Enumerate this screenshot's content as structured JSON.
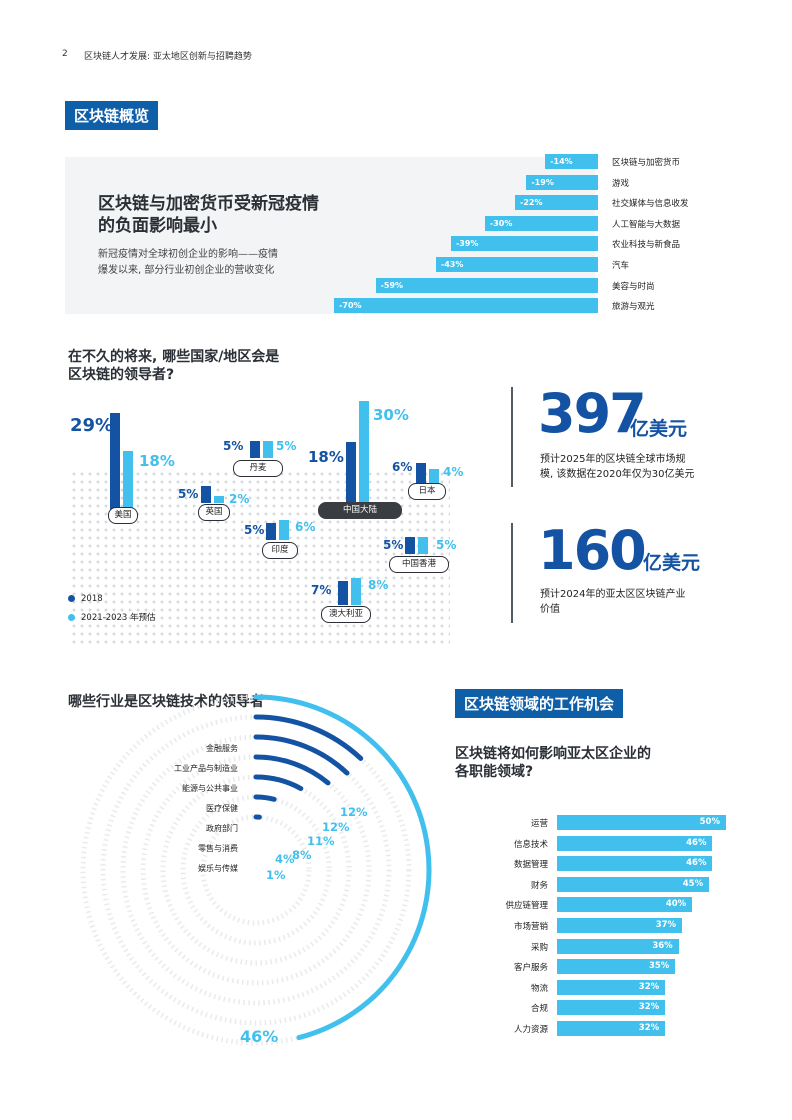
{
  "header": {
    "page_number": "2",
    "doc_title": "区块链人才发展: 亚太地区创新与招聘趋势"
  },
  "overview": {
    "tag": "区块链概览",
    "title_line1": "区块链与加密货币受新冠疫情",
    "title_line2": "的负面影响最小",
    "desc_line1": "新冠疫情对全球初创企业的影响——疫情",
    "desc_line2": "爆发以来, 部分行业初创企业的营收变化",
    "chart_data": {
      "type": "bar",
      "categories": [
        "区块链与加密货币",
        "游戏",
        "社交媒体与信息收发",
        "人工智能与大数据",
        "农业科技与新食品",
        "汽车",
        "美容与时尚",
        "旅游与观光"
      ],
      "values": [
        -14,
        -19,
        -22,
        -30,
        -39,
        -43,
        -59,
        -70
      ],
      "value_labels": [
        "-14%",
        "-19%",
        "-22%",
        "-30%",
        "-39%",
        "-43%",
        "-59%",
        "-70%"
      ]
    }
  },
  "leaders": {
    "title_line1": "在不久的将来, 哪些国家/地区会是",
    "title_line2": "区块链的领导者?",
    "legend": {
      "series_2018": "2018",
      "series_forecast": "2021-2023 年预估"
    },
    "colors": {
      "dark": "#1453a3",
      "light": "#41c0ee"
    },
    "chart_data": {
      "type": "bar",
      "categories": [
        "美国",
        "丹麦",
        "英国",
        "印度",
        "中国大陆",
        "日本",
        "中国香港",
        "澳大利亚"
      ],
      "series": [
        {
          "name": "2018",
          "values": [
            29,
            5,
            5,
            5,
            18,
            6,
            5,
            7
          ]
        },
        {
          "name": "2021-2023 年预估",
          "values": [
            18,
            5,
            2,
            6,
            30,
            4,
            5,
            8
          ]
        }
      ],
      "labels_2018": [
        "29%",
        "5%",
        "5%",
        "5%",
        "18%",
        "6%",
        "5%",
        "7%"
      ],
      "labels_forecast": [
        "18%",
        "5%",
        "2%",
        "6%",
        "30%",
        "4%",
        "5%",
        "8%"
      ]
    }
  },
  "stats": [
    {
      "number": "397",
      "unit": "亿美元",
      "desc_line1": "预计2025年的区块链全球市场规",
      "desc_line2": "模, 该数据在2020年仅为30亿美元"
    },
    {
      "number": "160",
      "unit": "亿美元",
      "desc_line1": "预计2024年的亚太区区块链产业",
      "desc_line2": "价值"
    }
  ],
  "industries": {
    "title": "哪些行业是区块链技术的领导者",
    "chart_data": {
      "type": "bar",
      "categories": [
        "金融服务",
        "工业产品与制造业",
        "能源与公共事业",
        "医疗保健",
        "政府部门",
        "零售与消费",
        "娱乐与传媒"
      ],
      "values": [
        46,
        12,
        12,
        11,
        8,
        4,
        1
      ],
      "value_labels": [
        "46%",
        "12%",
        "12%",
        "11%",
        "8%",
        "4%",
        "1%"
      ]
    }
  },
  "jobs": {
    "tag": "区块链领域的工作机会",
    "title_line1": "区块链将如何影响亚太区企业的",
    "title_line2": "各职能领域?",
    "chart_data": {
      "type": "bar",
      "categories": [
        "运营",
        "信息技术",
        "数据管理",
        "财务",
        "供应链管理",
        "市场营销",
        "采购",
        "客户服务",
        "物流",
        "合规",
        "人力资源"
      ],
      "values": [
        50,
        46,
        46,
        45,
        40,
        37,
        36,
        35,
        32,
        32,
        32
      ],
      "value_labels": [
        "50%",
        "46%",
        "46%",
        "45%",
        "40%",
        "37%",
        "36%",
        "35%",
        "32%",
        "32%",
        "32%"
      ]
    }
  }
}
